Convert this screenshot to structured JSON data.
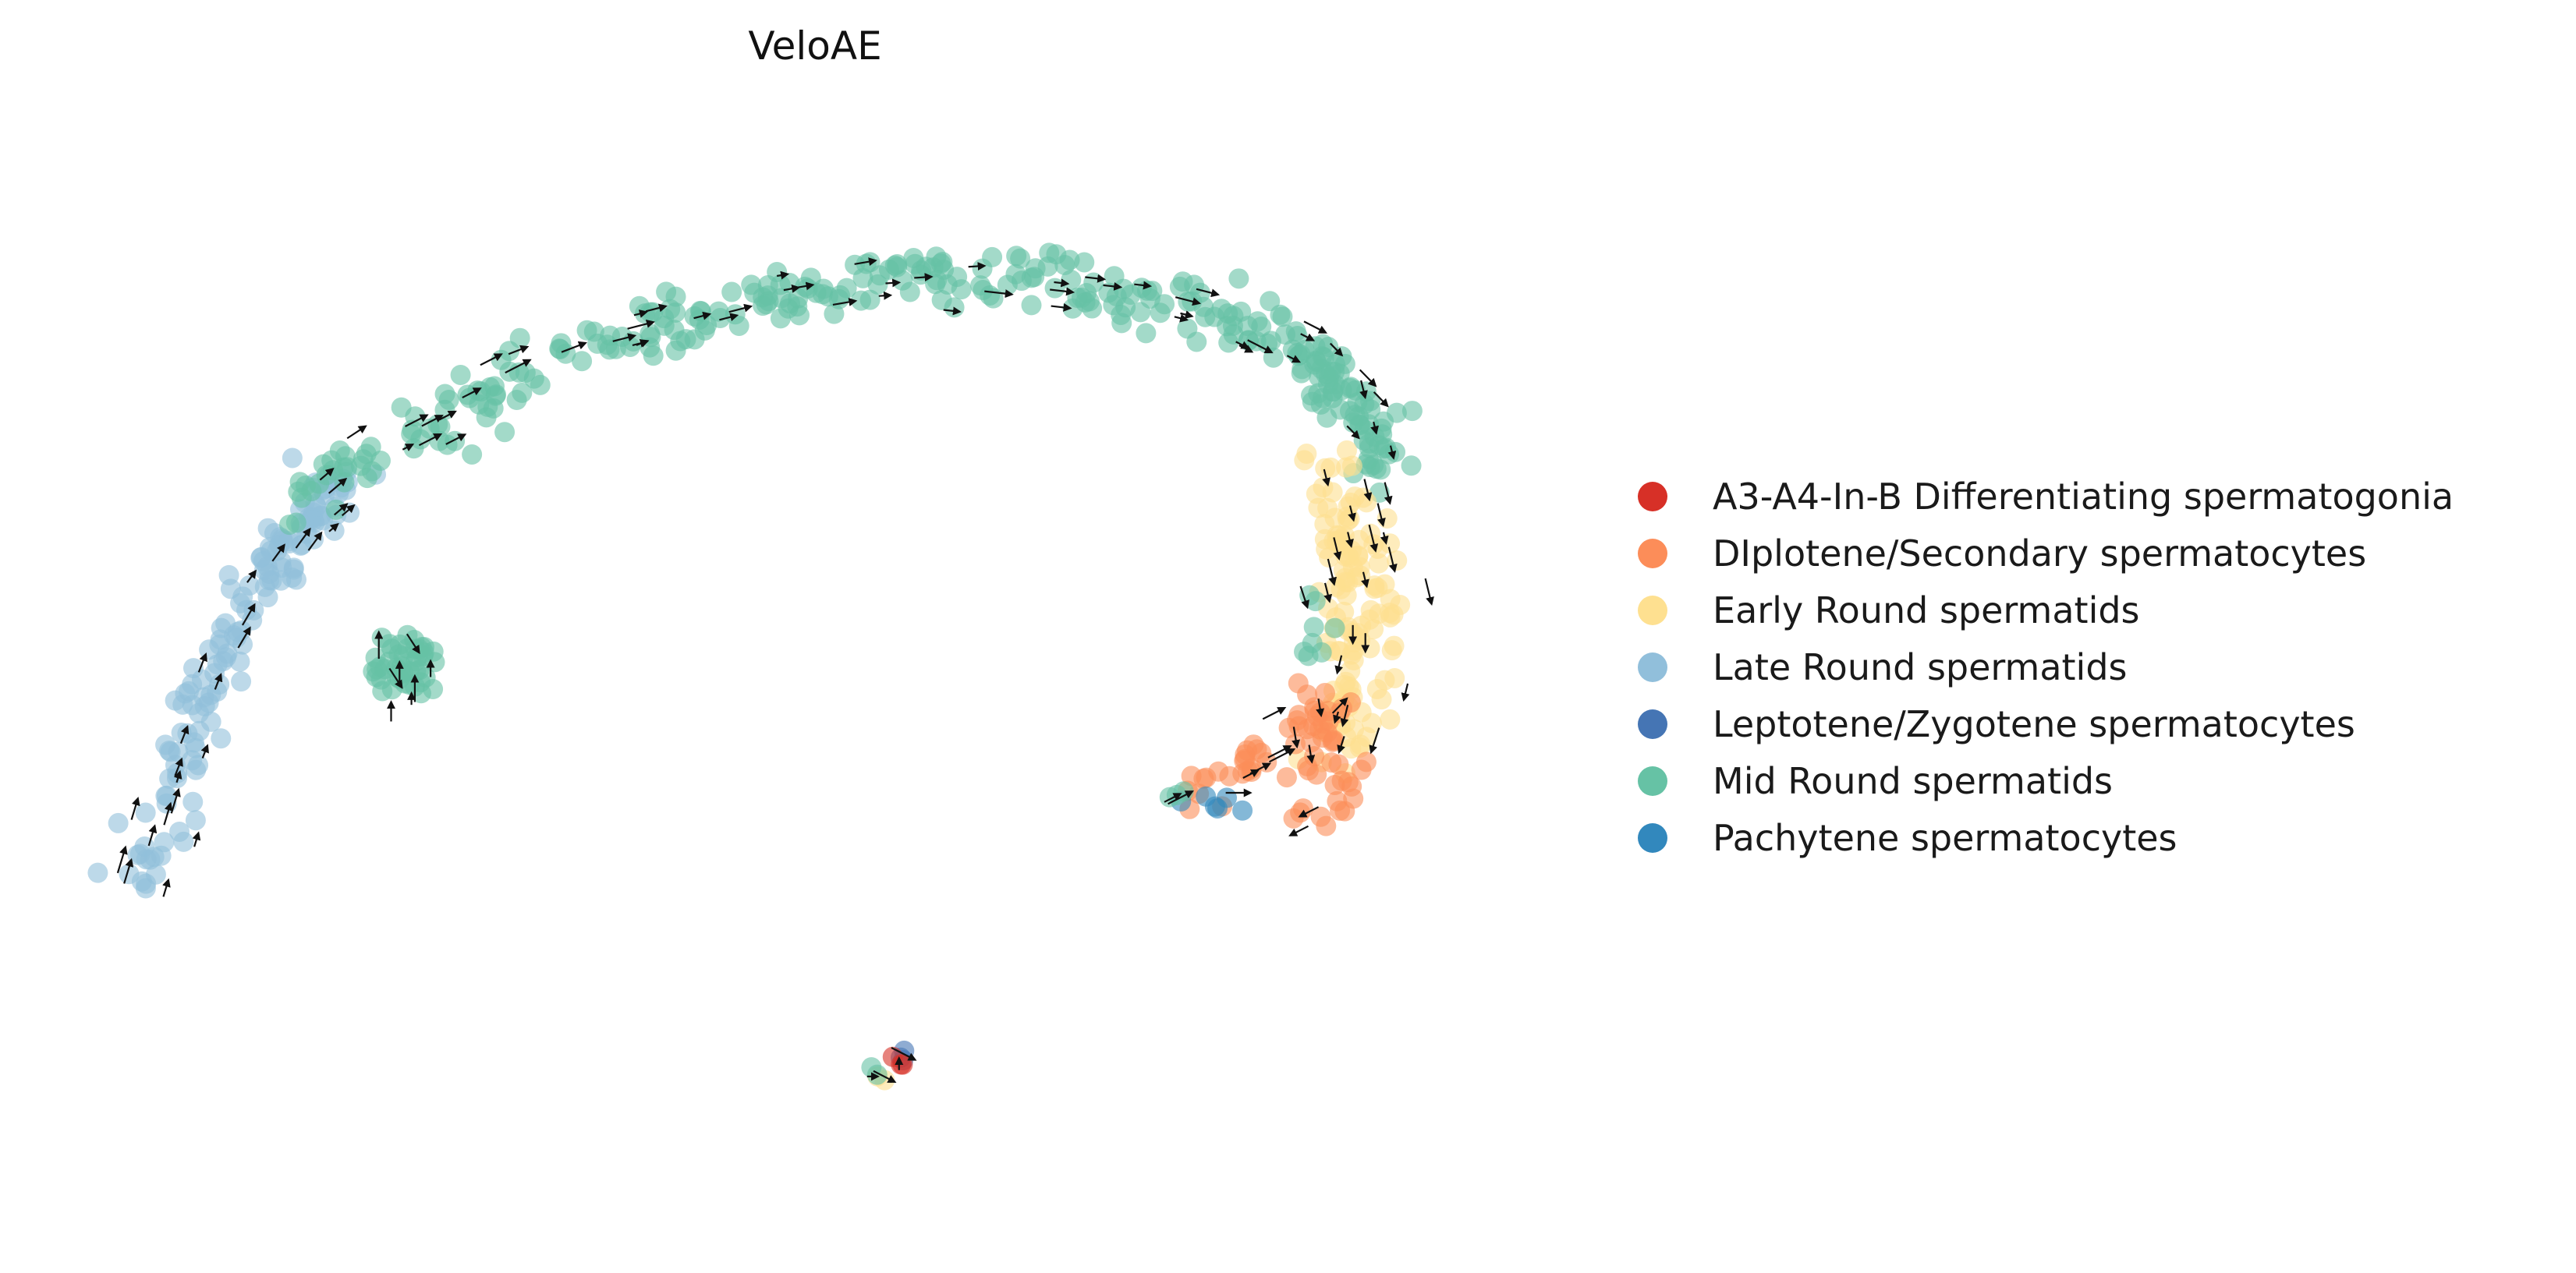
{
  "chart_data": {
    "type": "scatter",
    "title": "VeloAE",
    "xlabel": "",
    "ylabel": "",
    "axes_visible": false,
    "legend_position": "right",
    "xlim": [
      0,
      100
    ],
    "ylim": [
      0,
      100
    ],
    "categories": [
      {
        "name": "A3-A4-In-B Differentiating spermatogonia",
        "color": "#d73027"
      },
      {
        "name": "DIplotene/Secondary spermatocytes",
        "color": "#fc8d59"
      },
      {
        "name": "Early Round spermatids",
        "color": "#fee090"
      },
      {
        "name": "Late Round spermatids",
        "color": "#91bfdb"
      },
      {
        "name": "Leptotene/Zygotene spermatocytes",
        "color": "#4575b4"
      },
      {
        "name": "Mid Round spermatids",
        "color": "#66c2a5"
      },
      {
        "name": "Pachytene spermatocytes",
        "color": "#3288bd"
      }
    ],
    "clusters": [
      {
        "category": "Late Round spermatids",
        "path": [
          [
            3,
            2
          ],
          [
            5,
            15
          ],
          [
            7,
            25
          ],
          [
            9,
            35
          ],
          [
            12,
            45
          ],
          [
            15,
            53
          ],
          [
            18,
            58
          ]
        ],
        "spread": 2.2,
        "count": 150
      },
      {
        "category": "Mid Round spermatids",
        "path": [
          [
            15,
            55
          ],
          [
            22,
            64
          ],
          [
            30,
            72
          ],
          [
            38,
            78
          ],
          [
            46,
            82
          ],
          [
            55,
            85
          ],
          [
            63,
            86
          ],
          [
            72,
            84
          ],
          [
            80,
            80
          ],
          [
            86,
            74
          ],
          [
            90,
            66
          ],
          [
            91,
            58
          ]
        ],
        "spread": 2.2,
        "count": 330
      },
      {
        "category": "Mid Round spermatids",
        "path": [
          [
            21,
            33
          ],
          [
            22,
            30
          ],
          [
            22,
            34
          ]
        ],
        "spread": 2.0,
        "count": 45
      },
      {
        "category": "Early Round spermatids",
        "path": [
          [
            88,
            58
          ],
          [
            89,
            50
          ],
          [
            90,
            42
          ],
          [
            90,
            34
          ],
          [
            89,
            26
          ],
          [
            88,
            20
          ]
        ],
        "spread": 2.6,
        "count": 130
      },
      {
        "category": "DIplotene/Secondary spermatocytes",
        "path": [
          [
            77,
            14
          ],
          [
            81,
            18
          ],
          [
            85,
            22
          ],
          [
            87,
            26
          ],
          [
            88,
            14
          ],
          [
            86,
            12
          ]
        ],
        "spread": 2.0,
        "count": 70
      },
      {
        "category": "Pachytene spermatocytes",
        "path": [
          [
            77,
            12
          ],
          [
            80,
            13
          ],
          [
            82,
            13
          ]
        ],
        "spread": 0.8,
        "count": 6
      },
      {
        "category": "Mid Round spermatids",
        "path": [
          [
            76,
            13
          ],
          [
            77,
            14
          ]
        ],
        "spread": 0.6,
        "count": 3
      },
      {
        "category": "Mid Round spermatids",
        "path": [
          [
            86,
            44
          ],
          [
            87,
            38
          ],
          [
            86,
            32
          ]
        ],
        "spread": 1.2,
        "count": 8
      },
      {
        "category": "Leptotene/Zygotene spermatocytes",
        "path": [
          [
            57,
            -24
          ],
          [
            57,
            -22
          ]
        ],
        "spread": 0.7,
        "count": 3
      },
      {
        "category": "A3-A4-In-B Differentiating spermatogonia",
        "path": [
          [
            56,
            -23
          ],
          [
            57,
            -24
          ]
        ],
        "spread": 0.6,
        "count": 3
      },
      {
        "category": "Early Round spermatids",
        "path": [
          [
            55,
            -26
          ],
          [
            56,
            -27
          ]
        ],
        "spread": 0.6,
        "count": 2
      },
      {
        "category": "Mid Round spermatids",
        "path": [
          [
            55,
            -25
          ]
        ],
        "spread": 0.5,
        "count": 2
      }
    ]
  }
}
